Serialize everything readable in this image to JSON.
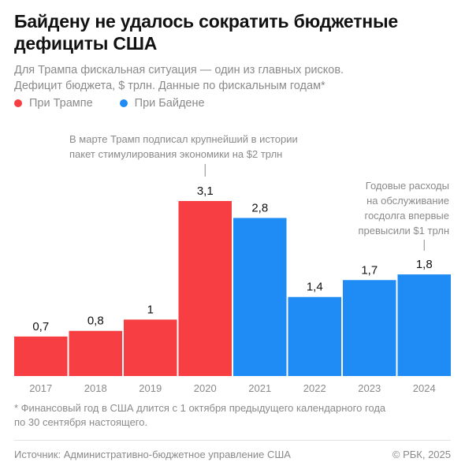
{
  "header": {
    "title": "Байдену не удалось сократить бюджетные дефициты США",
    "subtitle_line1": "Для Трампа фискальная ситуация — один из главных рисков.",
    "subtitle_line2": "Дефицит бюджета, $ трлн. Данные по фискальным годам*"
  },
  "legend": {
    "placement": "top-left",
    "items": [
      {
        "label": "При Трампе",
        "color": "#f63e43"
      },
      {
        "label": "При Байдене",
        "color": "#1f8cf5"
      }
    ]
  },
  "chart_data": {
    "type": "bar",
    "categories": [
      "2017",
      "2018",
      "2019",
      "2020",
      "2021",
      "2022",
      "2023",
      "2024"
    ],
    "values": [
      0.7,
      0.8,
      1,
      3.1,
      2.8,
      1.4,
      1.7,
      1.8
    ],
    "value_labels": [
      "0,7",
      "0,8",
      "1",
      "3,1",
      "2,8",
      "1,4",
      "1,7",
      "1,8"
    ],
    "bar_series": [
      "При Трампе",
      "При Трампе",
      "При Трампе",
      "При Трампе",
      "При Байдене",
      "При Байдене",
      "При Байдене",
      "При Байдене"
    ],
    "colors": {
      "При Трампе": "#f63e43",
      "При Байдене": "#1f8cf5"
    },
    "ylim": [
      0,
      3.1
    ],
    "grid": false,
    "annotations": [
      {
        "category": "2020",
        "lines": [
          "В марте Трамп подписал крупнейший в истории",
          "пакет стимулирования экономики на $2 трлн"
        ]
      },
      {
        "category": "2024",
        "lines": [
          "Годовые расходы",
          "на обслуживание",
          "госдолга впервые",
          "превысили $1 трлн"
        ]
      }
    ]
  },
  "footer": {
    "footnote_line1": "* Финансовый год в США длится с 1 октября предыдущего календарного года",
    "footnote_line2": "по 30 сентября настоящего.",
    "source": "Источник: Административно-бюджетное управление США",
    "copyright": "© РБК, 2025"
  }
}
